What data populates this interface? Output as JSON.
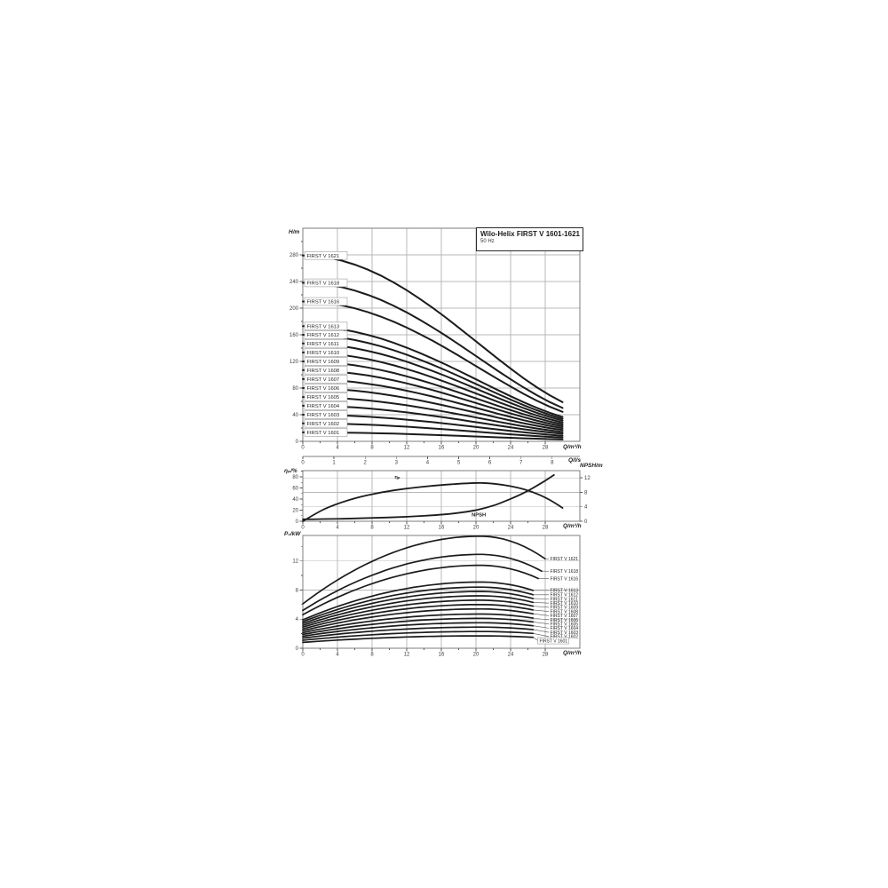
{
  "title_box": {
    "title": "Wilo-Helix FIRST V 1601-1621",
    "subtitle": "50 Hz"
  },
  "colors": {
    "curve": "#1b1b1b",
    "grid": "#b8b8b8",
    "frame": "#7d7d7d",
    "tick": "#5a5a5a",
    "tick_text": "#3c3c3c",
    "label_box_border": "#9a9a9a",
    "leader": "#555555"
  },
  "chart_data": [
    {
      "id": "head-flow",
      "type": "line",
      "title": "Wilo-Helix FIRST V 1601-1621  50 Hz",
      "xlabel": "Q/m³/h",
      "x2label": "Q/l/s",
      "ylabel": "H/m",
      "xlim": [
        0,
        32
      ],
      "ylim": [
        0,
        320
      ],
      "xticks": [
        0,
        4,
        8,
        12,
        16,
        20,
        24,
        28
      ],
      "x_minor_step": 2,
      "yticks": [
        0,
        40,
        80,
        120,
        160,
        200,
        240,
        280
      ],
      "y_minor_step": 20,
      "x2ticks": [
        0,
        1,
        2,
        3,
        4,
        5,
        6,
        7,
        8
      ],
      "x2_to_x_factor": 3.6,
      "grid": "on",
      "curve_shape": {
        "comment": "H(Q)=H0*(1-1.28t^2+0.48t^4), t=Q/30.5",
        "q_values": [
          0,
          5,
          10,
          15,
          20,
          25,
          30
        ],
        "head_fraction": [
          1.0,
          0.966,
          0.868,
          0.718,
          0.538,
          0.356,
          0.211
        ],
        "a2": 1.28,
        "a4": 0.48,
        "q_ref": 30.5
      },
      "series": [
        {
          "name": "FIRST V 1621",
          "shutoff_head_m": 279.0,
          "max_flow_m3h": 30,
          "head_at_max_m": 58.9
        },
        {
          "name": "FIRST V 1618",
          "shutoff_head_m": 238.0,
          "max_flow_m3h": 30,
          "head_at_max_m": 50.2
        },
        {
          "name": "FIRST V 1616",
          "shutoff_head_m": 210.0,
          "max_flow_m3h": 30,
          "head_at_max_m": 44.3
        },
        {
          "name": "FIRST V 1613",
          "shutoff_head_m": 173.0,
          "max_flow_m3h": 30,
          "head_at_max_m": 36.5
        },
        {
          "name": "FIRST V 1612",
          "shutoff_head_m": 160.0,
          "max_flow_m3h": 30,
          "head_at_max_m": 33.8
        },
        {
          "name": "FIRST V 1611",
          "shutoff_head_m": 147.0,
          "max_flow_m3h": 30,
          "head_at_max_m": 31.0
        },
        {
          "name": "FIRST V 1610",
          "shutoff_head_m": 133.5,
          "max_flow_m3h": 30,
          "head_at_max_m": 28.2
        },
        {
          "name": "FIRST V 1609",
          "shutoff_head_m": 120.0,
          "max_flow_m3h": 30,
          "head_at_max_m": 25.3
        },
        {
          "name": "FIRST V 1608",
          "shutoff_head_m": 107.0,
          "max_flow_m3h": 30,
          "head_at_max_m": 22.6
        },
        {
          "name": "FIRST V 1607",
          "shutoff_head_m": 93.5,
          "max_flow_m3h": 30,
          "head_at_max_m": 19.7
        },
        {
          "name": "FIRST V 1606",
          "shutoff_head_m": 80.0,
          "max_flow_m3h": 30,
          "head_at_max_m": 16.9
        },
        {
          "name": "FIRST V 1605",
          "shutoff_head_m": 66.5,
          "max_flow_m3h": 30,
          "head_at_max_m": 14.0
        },
        {
          "name": "FIRST V 1604",
          "shutoff_head_m": 53.5,
          "max_flow_m3h": 30,
          "head_at_max_m": 11.3
        },
        {
          "name": "FIRST V 1603",
          "shutoff_head_m": 40.0,
          "max_flow_m3h": 30,
          "head_at_max_m": 8.4
        },
        {
          "name": "FIRST V 1602",
          "shutoff_head_m": 27.0,
          "max_flow_m3h": 30,
          "head_at_max_m": 5.7
        },
        {
          "name": "FIRST V 1601",
          "shutoff_head_m": 13.5,
          "max_flow_m3h": 30,
          "head_at_max_m": 2.8
        }
      ]
    },
    {
      "id": "efficiency-npsh",
      "type": "line",
      "xlabel": "Q/m³/h",
      "ylabel": "ηₚ/%",
      "y2label": "NPSH/m",
      "xlim": [
        0,
        32
      ],
      "ylim": [
        0,
        91
      ],
      "y2lim": [
        0,
        14
      ],
      "xticks": [
        0,
        4,
        8,
        12,
        16,
        20,
        24,
        28
      ],
      "yticks": [
        0,
        20,
        40,
        60,
        80
      ],
      "y_minor_step": 10,
      "y2ticks": [
        0,
        4,
        8,
        12
      ],
      "grid": "on",
      "series": [
        {
          "name": "ηₚ",
          "axis": "left",
          "label_at": [
            10.6,
            80
          ],
          "points": [
            [
              0,
              0
            ],
            [
              1.5,
              14
            ],
            [
              3,
              26
            ],
            [
              6,
              42
            ],
            [
              9,
              52
            ],
            [
              12,
              59
            ],
            [
              15,
              64
            ],
            [
              18,
              67.5
            ],
            [
              20,
              69
            ],
            [
              21,
              69
            ],
            [
              23,
              66
            ],
            [
              25,
              60
            ],
            [
              26.5,
              53
            ],
            [
              28,
              43
            ],
            [
              29,
              34
            ],
            [
              30,
              24
            ]
          ]
        },
        {
          "name": "NPSH",
          "axis": "right",
          "label_at": [
            19.5,
            1.9
          ],
          "points": [
            [
              0,
              0.55
            ],
            [
              4,
              0.65
            ],
            [
              8,
              0.9
            ],
            [
              12,
              1.2
            ],
            [
              16,
              1.8
            ],
            [
              18,
              2.3
            ],
            [
              20,
              3.0
            ],
            [
              22,
              4.3
            ],
            [
              23,
              5.2
            ],
            [
              25,
              7.2
            ],
            [
              26,
              8.4
            ],
            [
              27,
              9.8
            ],
            [
              28,
              11.2
            ],
            [
              29,
              12.8
            ]
          ]
        }
      ]
    },
    {
      "id": "power-flow",
      "type": "line",
      "xlabel": "Q/m³/h",
      "ylabel": "P₂/kW",
      "xlim": [
        0,
        32
      ],
      "ylim": [
        0,
        15.5
      ],
      "xticks": [
        0,
        4,
        8,
        12,
        16,
        20,
        24,
        28
      ],
      "yticks": [
        0,
        4,
        8,
        12
      ],
      "y_minor_step": 2,
      "grid": "on",
      "curve_shape": {
        "comment": "P(Q)=Ppk-(Ppk-P0)*k*u^2, u=(Q-20.5)/20.5, k=1 below peak, 2.5 above",
        "peak_flow_m3h": 20.5
      },
      "series": [
        {
          "name": "FIRST V 1621",
          "p2_at_zero_kw": 6.1,
          "p2_peak_kw": 15.4,
          "max_flow_m3h": 28.0
        },
        {
          "name": "FIRST V 1618",
          "p2_at_zero_kw": 5.2,
          "p2_peak_kw": 12.9,
          "max_flow_m3h": 27.6
        },
        {
          "name": "FIRST V 1616",
          "p2_at_zero_kw": 4.6,
          "p2_peak_kw": 11.4,
          "max_flow_m3h": 27.2
        },
        {
          "name": "FIRST V 1613",
          "p2_at_zero_kw": 3.9,
          "p2_peak_kw": 9.1,
          "max_flow_m3h": 26.6
        },
        {
          "name": "FIRST V 1612",
          "p2_at_zero_kw": 3.65,
          "p2_peak_kw": 8.4,
          "max_flow_m3h": 26.6
        },
        {
          "name": "FIRST V 1611",
          "p2_at_zero_kw": 3.4,
          "p2_peak_kw": 7.8,
          "max_flow_m3h": 26.6
        },
        {
          "name": "FIRST V 1610",
          "p2_at_zero_kw": 3.15,
          "p2_peak_kw": 7.2,
          "max_flow_m3h": 26.6
        },
        {
          "name": "FIRST V 1609",
          "p2_at_zero_kw": 2.9,
          "p2_peak_kw": 6.6,
          "max_flow_m3h": 26.6
        },
        {
          "name": "FIRST V 1608",
          "p2_at_zero_kw": 2.65,
          "p2_peak_kw": 6.0,
          "max_flow_m3h": 26.6
        },
        {
          "name": "FIRST V 1607",
          "p2_at_zero_kw": 2.4,
          "p2_peak_kw": 5.4,
          "max_flow_m3h": 26.6
        },
        {
          "name": "FIRST V 1606",
          "p2_at_zero_kw": 2.15,
          "p2_peak_kw": 4.7,
          "max_flow_m3h": 26.6
        },
        {
          "name": "FIRST V 1605",
          "p2_at_zero_kw": 1.9,
          "p2_peak_kw": 4.1,
          "max_flow_m3h": 26.6
        },
        {
          "name": "FIRST V 1604",
          "p2_at_zero_kw": 1.65,
          "p2_peak_kw": 3.5,
          "max_flow_m3h": 26.6
        },
        {
          "name": "FIRST V 1603",
          "p2_at_zero_kw": 1.4,
          "p2_peak_kw": 2.9,
          "max_flow_m3h": 26.6
        },
        {
          "name": "FIRST V 1602",
          "p2_at_zero_kw": 1.1,
          "p2_peak_kw": 2.3,
          "max_flow_m3h": 26.6
        },
        {
          "name": "FIRST V 1601",
          "p2_at_zero_kw": 0.8,
          "p2_peak_kw": 1.7,
          "max_flow_m3h": 26.6
        }
      ]
    }
  ]
}
